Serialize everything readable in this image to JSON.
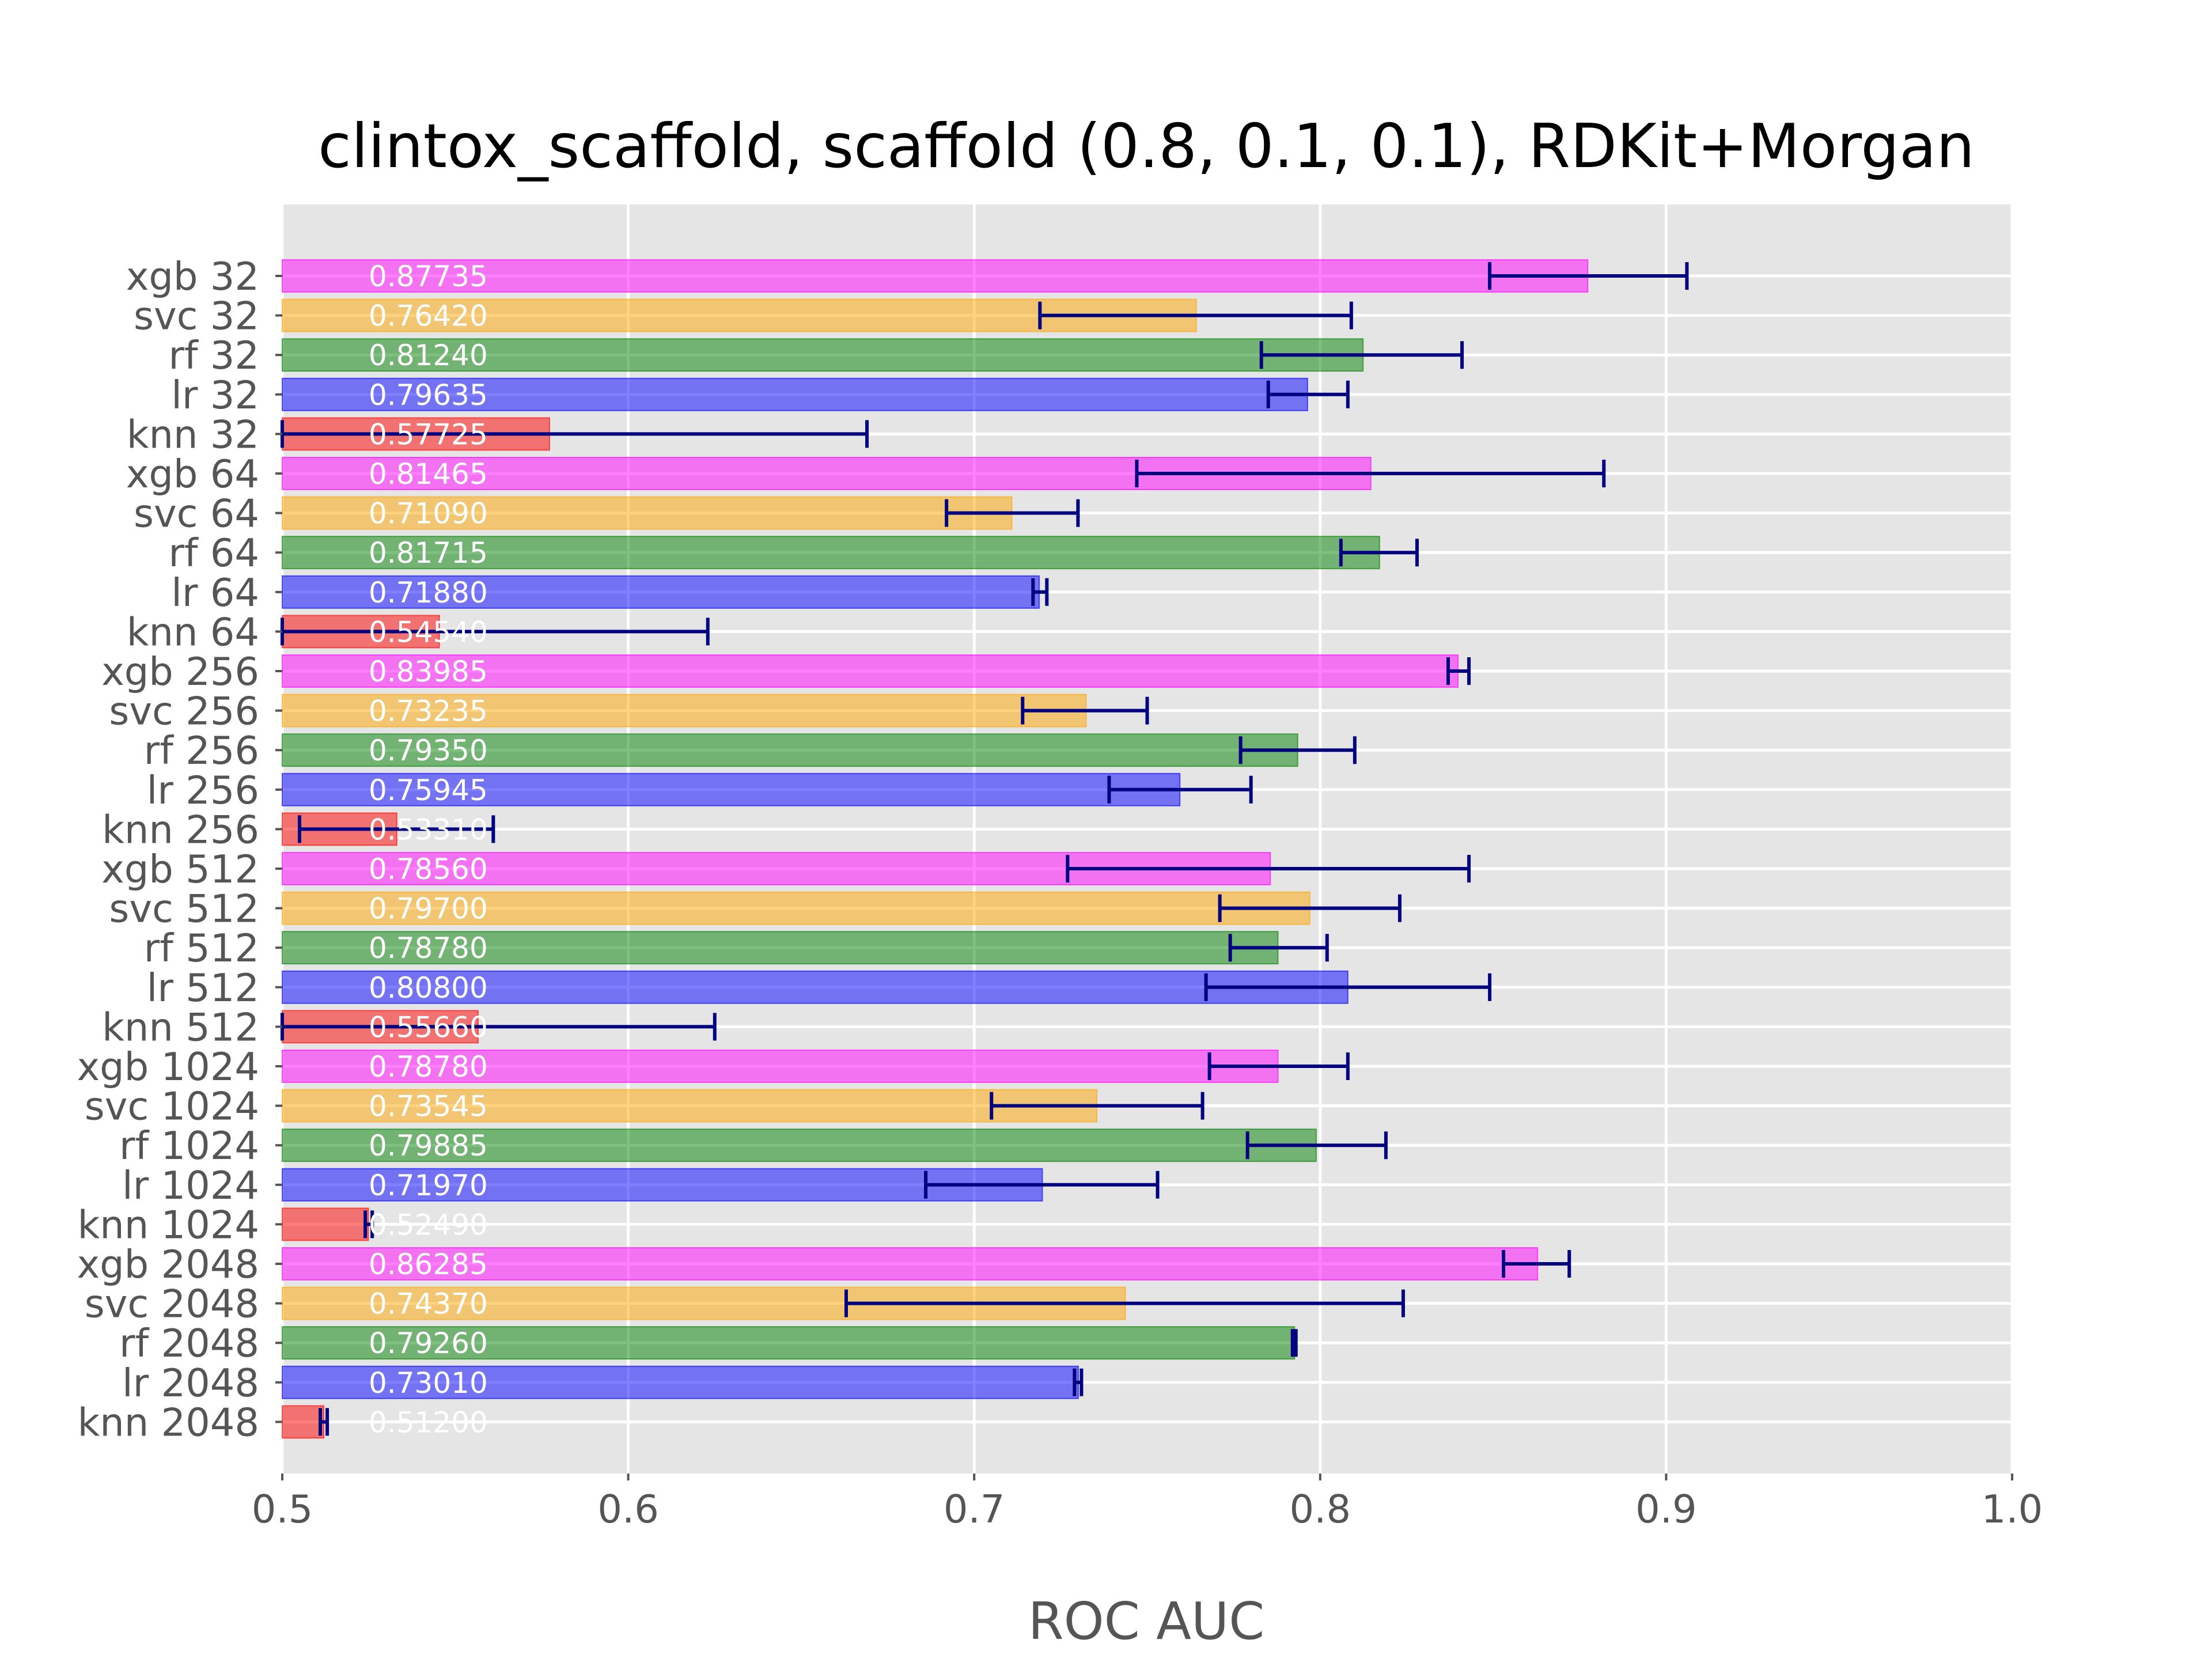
{
  "chart_data": {
    "type": "bar",
    "orientation": "horizontal",
    "title": "clintox_scaffold, scaffold (0.8, 0.1, 0.1), RDKit+Morgan",
    "xlabel": "ROC AUC",
    "ylabel": "",
    "xlim": [
      0.5,
      1.0
    ],
    "xticks": [
      "0.5",
      "0.6",
      "0.7",
      "0.8",
      "0.9",
      "1.0"
    ],
    "grid": true,
    "colors": {
      "xgb": "#ff00ff",
      "svc": "#ffa500",
      "rf": "#008000",
      "lr": "#0000ff",
      "knn": "#ff0000",
      "errorbar": "#000080",
      "plot_background": "#e5e5e5"
    },
    "bars": [
      {
        "label": "xgb 32",
        "model": "xgb",
        "value": 0.87735,
        "value_text": "0.87735",
        "err_low": 0.849,
        "err_high": 0.906
      },
      {
        "label": "svc 32",
        "model": "svc",
        "value": 0.7642,
        "value_text": "0.76420",
        "err_low": 0.719,
        "err_high": 0.809
      },
      {
        "label": "rf 32",
        "model": "rf",
        "value": 0.8124,
        "value_text": "0.81240",
        "err_low": 0.783,
        "err_high": 0.841
      },
      {
        "label": "lr 32",
        "model": "lr",
        "value": 0.79635,
        "value_text": "0.79635",
        "err_low": 0.785,
        "err_high": 0.808
      },
      {
        "label": "knn 32",
        "model": "knn",
        "value": 0.57725,
        "value_text": "0.57725",
        "err_low": 0.485,
        "err_high": 0.669
      },
      {
        "label": "xgb 64",
        "model": "xgb",
        "value": 0.81465,
        "value_text": "0.81465",
        "err_low": 0.747,
        "err_high": 0.882
      },
      {
        "label": "svc 64",
        "model": "svc",
        "value": 0.7109,
        "value_text": "0.71090",
        "err_low": 0.692,
        "err_high": 0.73
      },
      {
        "label": "rf 64",
        "model": "rf",
        "value": 0.81715,
        "value_text": "0.81715",
        "err_low": 0.806,
        "err_high": 0.828
      },
      {
        "label": "lr 64",
        "model": "lr",
        "value": 0.7188,
        "value_text": "0.71880",
        "err_low": 0.717,
        "err_high": 0.721
      },
      {
        "label": "knn 64",
        "model": "knn",
        "value": 0.5454,
        "value_text": "0.54540",
        "err_low": 0.467,
        "err_high": 0.623
      },
      {
        "label": "xgb 256",
        "model": "xgb",
        "value": 0.83985,
        "value_text": "0.83985",
        "err_low": 0.837,
        "err_high": 0.843
      },
      {
        "label": "svc 256",
        "model": "svc",
        "value": 0.73235,
        "value_text": "0.73235",
        "err_low": 0.714,
        "err_high": 0.75
      },
      {
        "label": "rf 256",
        "model": "rf",
        "value": 0.7935,
        "value_text": "0.79350",
        "err_low": 0.777,
        "err_high": 0.81
      },
      {
        "label": "lr 256",
        "model": "lr",
        "value": 0.75945,
        "value_text": "0.75945",
        "err_low": 0.739,
        "err_high": 0.78
      },
      {
        "label": "knn 256",
        "model": "knn",
        "value": 0.5331,
        "value_text": "0.53310",
        "err_low": 0.505,
        "err_high": 0.561
      },
      {
        "label": "xgb 512",
        "model": "xgb",
        "value": 0.7856,
        "value_text": "0.78560",
        "err_low": 0.727,
        "err_high": 0.843
      },
      {
        "label": "svc 512",
        "model": "svc",
        "value": 0.797,
        "value_text": "0.79700",
        "err_low": 0.771,
        "err_high": 0.823
      },
      {
        "label": "rf 512",
        "model": "rf",
        "value": 0.7878,
        "value_text": "0.78780",
        "err_low": 0.774,
        "err_high": 0.802
      },
      {
        "label": "lr 512",
        "model": "lr",
        "value": 0.808,
        "value_text": "0.80800",
        "err_low": 0.767,
        "err_high": 0.849
      },
      {
        "label": "knn 512",
        "model": "knn",
        "value": 0.5566,
        "value_text": "0.55660",
        "err_low": 0.488,
        "err_high": 0.625
      },
      {
        "label": "xgb 1024",
        "model": "xgb",
        "value": 0.7878,
        "value_text": "0.78780",
        "err_low": 0.768,
        "err_high": 0.808
      },
      {
        "label": "svc 1024",
        "model": "svc",
        "value": 0.73545,
        "value_text": "0.73545",
        "err_low": 0.705,
        "err_high": 0.766
      },
      {
        "label": "rf 1024",
        "model": "rf",
        "value": 0.79885,
        "value_text": "0.79885",
        "err_low": 0.779,
        "err_high": 0.819
      },
      {
        "label": "lr 1024",
        "model": "lr",
        "value": 0.7197,
        "value_text": "0.71970",
        "err_low": 0.686,
        "err_high": 0.753
      },
      {
        "label": "knn 1024",
        "model": "knn",
        "value": 0.5249,
        "value_text": "0.52490",
        "err_low": 0.524,
        "err_high": 0.526
      },
      {
        "label": "xgb 2048",
        "model": "xgb",
        "value": 0.86285,
        "value_text": "0.86285",
        "err_low": 0.853,
        "err_high": 0.872
      },
      {
        "label": "svc 2048",
        "model": "svc",
        "value": 0.7437,
        "value_text": "0.74370",
        "err_low": 0.663,
        "err_high": 0.824
      },
      {
        "label": "rf 2048",
        "model": "rf",
        "value": 0.7926,
        "value_text": "0.79260",
        "err_low": 0.792,
        "err_high": 0.793
      },
      {
        "label": "lr 2048",
        "model": "lr",
        "value": 0.7301,
        "value_text": "0.73010",
        "err_low": 0.729,
        "err_high": 0.731
      },
      {
        "label": "knn 2048",
        "model": "knn",
        "value": 0.512,
        "value_text": "0.51200",
        "err_low": 0.511,
        "err_high": 0.513
      }
    ]
  }
}
